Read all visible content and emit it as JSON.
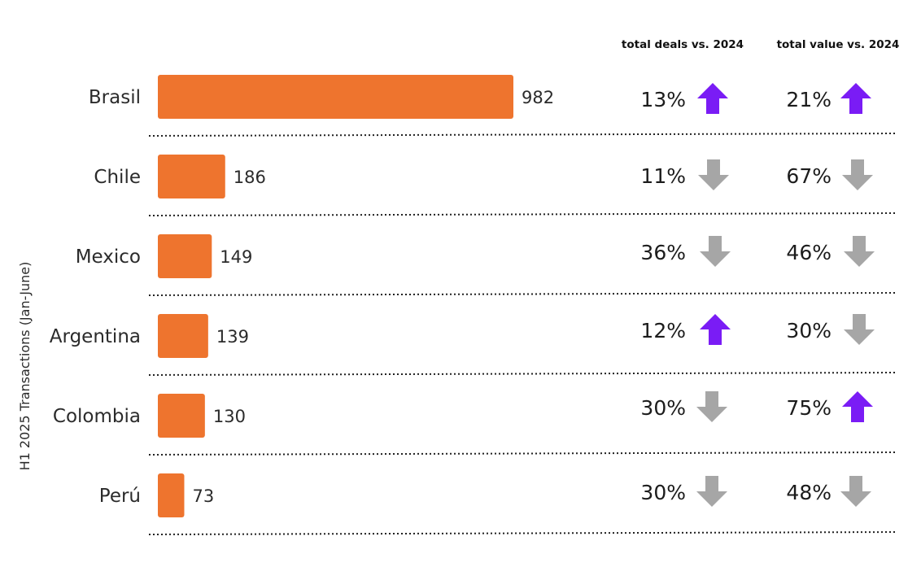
{
  "chart_data": {
    "type": "bar",
    "orientation": "horizontal",
    "ylabel": "H1 2025 Transactions  (Jan-June)",
    "column_headers": [
      "total deals vs. 2024",
      "total value vs. 2024"
    ],
    "categories": [
      "Brasil",
      "Chile",
      "Mexico",
      "Argentina",
      "Colombia",
      "Perú"
    ],
    "values": [
      982,
      186,
      149,
      139,
      130,
      73
    ],
    "bar_color": "#EE742E",
    "deals_change": [
      {
        "text": "13%",
        "direction": "up"
      },
      {
        "text": "11%",
        "direction": "down"
      },
      {
        "text": "36%",
        "direction": "down"
      },
      {
        "text": "12%",
        "direction": "up"
      },
      {
        "text": "30%",
        "direction": "down"
      },
      {
        "text": "30%",
        "direction": "down"
      }
    ],
    "value_change": [
      {
        "text": "21%",
        "direction": "up"
      },
      {
        "text": "67%",
        "direction": "down"
      },
      {
        "text": "46%",
        "direction": "down"
      },
      {
        "text": "30%",
        "direction": "down"
      },
      {
        "text": "75%",
        "direction": "up"
      },
      {
        "text": "48%",
        "direction": "down"
      }
    ],
    "colors": {
      "up": "#7A1CF5",
      "down": "#A6A6A6",
      "divider": "#222222"
    },
    "icons": {
      "up": "arrow-up-icon",
      "down": "arrow-down-icon"
    }
  }
}
